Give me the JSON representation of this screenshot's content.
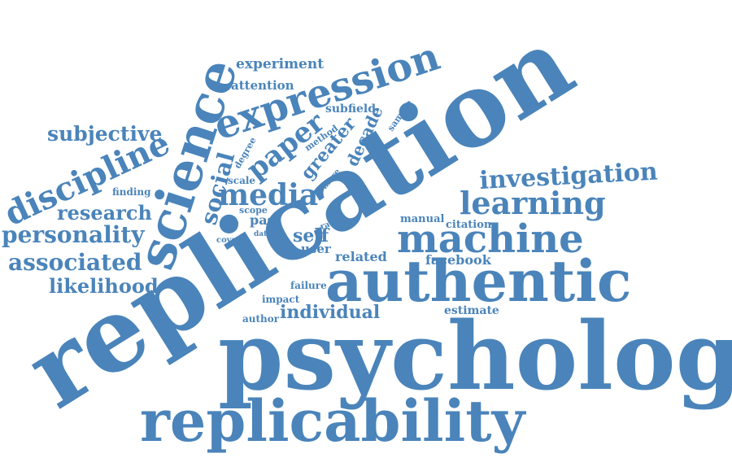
{
  "colors": {
    "word": "#4a84ba",
    "background": "#ffffff"
  },
  "words": {
    "psychology": "psychology",
    "replication": "replication",
    "replicability": "replicability",
    "authentic": "authentic",
    "machine": "machine",
    "learning": "learning",
    "science": "science",
    "expression": "expression",
    "investigation": "investigation",
    "media": "media",
    "social": "social",
    "paper": "paper",
    "discipline": "discipline",
    "subjective": "subjective",
    "research": "research",
    "personality": "personality",
    "associated": "associated",
    "likelihood": "likelihood",
    "individual": "individual",
    "experiment": "experiment",
    "attention": "attention",
    "subfield": "subfield",
    "sample": "sample",
    "decade": "decade",
    "greater": "greater",
    "method": "method",
    "degree": "degree",
    "more": "more",
    "scale": "scale",
    "scope": "scope",
    "past": "past",
    "finding": "finding",
    "self": "self",
    "user": "user",
    "rate": "rate",
    "data": "data",
    "cover": "cover",
    "related": "related",
    "facebook": "facebook",
    "manual": "manual",
    "citation": "citation",
    "failure": "failure",
    "impact": "impact",
    "author": "author",
    "estimate": "estimate"
  }
}
